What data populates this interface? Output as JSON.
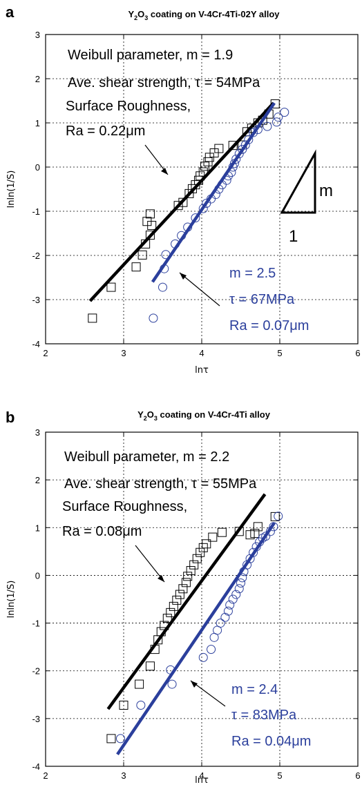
{
  "colors": {
    "fit_black": "#000000",
    "fit_blue": "#2b3f9c",
    "grid": "#000000"
  },
  "chart_data": [
    {
      "panel_letter": "a",
      "type": "scatter",
      "title": "Y2O3 coating on V-4Cr-4Ti-02Y alloy",
      "title_parts": {
        "a": "Y",
        "b": "2",
        "c": "O",
        "d": "3",
        "e": " coating on V-4Cr-4Ti-02Y alloy"
      },
      "xlabel": "lnτ",
      "ylabel": "lnln(1/S)",
      "xlim": [
        2,
        6
      ],
      "ylim": [
        -4,
        3
      ],
      "xticks": [
        "2",
        "3",
        "4",
        "5",
        "6"
      ],
      "yticks": [
        "-4",
        "-3",
        "-2",
        "-1",
        "0",
        "1",
        "2",
        "3"
      ],
      "grid": "dotted at interior ticks",
      "annotation_black": [
        "Weibull parameter, m = 1.9",
        "Ave. shear strength, τ = 54MPa",
        "Surface Roughness,",
        "Ra = 0.22μm"
      ],
      "annotation_blue": [
        "m = 2.5",
        "τ = 67MPa",
        "Ra = 0.07μm"
      ],
      "slope_triangle": {
        "m_label": "m",
        "run_label": "1"
      },
      "series": [
        {
          "marker": "square",
          "points": [
            [
              2.6,
              -3.42
            ],
            [
              2.84,
              -2.72
            ],
            [
              3.16,
              -2.26
            ],
            [
              3.24,
              -1.99
            ],
            [
              3.28,
              -1.74
            ],
            [
              3.34,
              -1.54
            ],
            [
              3.3,
              -1.23
            ],
            [
              3.34,
              -1.06
            ],
            [
              3.36,
              -1.32
            ],
            [
              3.7,
              -0.87
            ],
            [
              3.76,
              -0.8
            ],
            [
              3.84,
              -0.6
            ],
            [
              3.88,
              -0.49
            ],
            [
              3.92,
              -0.4
            ],
            [
              3.96,
              -0.3
            ],
            [
              3.98,
              -0.2
            ],
            [
              4.02,
              -0.11
            ],
            [
              4.04,
              0.02
            ],
            [
              4.08,
              0.12
            ],
            [
              4.1,
              0.22
            ],
            [
              4.16,
              0.32
            ],
            [
              4.22,
              0.42
            ],
            [
              4.4,
              0.49
            ],
            [
              4.52,
              0.5
            ],
            [
              4.58,
              0.8
            ],
            [
              4.64,
              0.88
            ],
            [
              4.72,
              1.0
            ],
            [
              4.78,
              1.06
            ],
            [
              4.86,
              1.2
            ],
            [
              4.94,
              1.43
            ]
          ],
          "fit": {
            "x": [
              2.57,
              4.92
            ],
            "y": [
              -3.03,
              1.45
            ]
          }
        },
        {
          "marker": "circle",
          "points": [
            [
              3.38,
              -3.42
            ],
            [
              3.5,
              -2.72
            ],
            [
              3.52,
              -2.3
            ],
            [
              3.54,
              -1.98
            ],
            [
              3.66,
              -1.74
            ],
            [
              3.74,
              -1.55
            ],
            [
              3.82,
              -1.36
            ],
            [
              3.92,
              -1.15
            ],
            [
              4.02,
              -0.94
            ],
            [
              4.06,
              -0.82
            ],
            [
              4.12,
              -0.72
            ],
            [
              4.18,
              -0.62
            ],
            [
              4.22,
              -0.5
            ],
            [
              4.26,
              -0.4
            ],
            [
              4.32,
              -0.3
            ],
            [
              4.34,
              -0.2
            ],
            [
              4.38,
              -0.12
            ],
            [
              4.4,
              0.0
            ],
            [
              4.42,
              0.08
            ],
            [
              4.44,
              0.18
            ],
            [
              4.48,
              0.3
            ],
            [
              4.52,
              0.4
            ],
            [
              4.56,
              0.5
            ],
            [
              4.6,
              0.62
            ],
            [
              4.66,
              0.78
            ],
            [
              4.72,
              0.85
            ],
            [
              4.84,
              0.92
            ],
            [
              4.96,
              1.02
            ],
            [
              4.98,
              1.13
            ],
            [
              5.06,
              1.24
            ]
          ],
          "fit": {
            "x": [
              3.37,
              4.93
            ],
            "y": [
              -2.6,
              1.45
            ]
          }
        }
      ]
    },
    {
      "panel_letter": "b",
      "type": "scatter",
      "title": "Y2O3 coating on V-4Cr-4Ti alloy",
      "title_parts": {
        "a": "Y",
        "b": "2",
        "c": "O",
        "d": "3",
        "e": " coating on V-4Cr-4Ti alloy"
      },
      "xlabel": "lnτ",
      "ylabel": "lnln(1/S)",
      "xlim": [
        2,
        6
      ],
      "ylim": [
        -4,
        3
      ],
      "xticks": [
        "2",
        "3",
        "4",
        "5",
        "6"
      ],
      "yticks": [
        "-4",
        "-3",
        "-2",
        "-1",
        "0",
        "1",
        "2",
        "3"
      ],
      "grid": "dotted at interior ticks",
      "annotation_black": [
        "Weibull parameter, m = 2.2",
        "Ave. shear strength, τ = 55MPa",
        "Surface Roughness,",
        "Ra = 0.08μm"
      ],
      "annotation_blue": [
        "m = 2.4",
        "τ = 83MPa",
        "Ra = 0.04μm"
      ],
      "series": [
        {
          "marker": "square",
          "points": [
            [
              2.84,
              -3.42
            ],
            [
              3.0,
              -2.72
            ],
            [
              3.2,
              -2.28
            ],
            [
              3.34,
              -1.9
            ],
            [
              3.4,
              -1.55
            ],
            [
              3.44,
              -1.35
            ],
            [
              3.48,
              -1.18
            ],
            [
              3.52,
              -1.05
            ],
            [
              3.56,
              -0.9
            ],
            [
              3.6,
              -0.78
            ],
            [
              3.64,
              -0.65
            ],
            [
              3.68,
              -0.52
            ],
            [
              3.72,
              -0.4
            ],
            [
              3.76,
              -0.28
            ],
            [
              3.8,
              -0.15
            ],
            [
              3.82,
              -0.02
            ],
            [
              3.86,
              0.1
            ],
            [
              3.9,
              0.22
            ],
            [
              3.94,
              0.35
            ],
            [
              3.98,
              0.48
            ],
            [
              4.02,
              0.58
            ],
            [
              4.06,
              0.66
            ],
            [
              4.14,
              0.8
            ],
            [
              4.26,
              0.9
            ],
            [
              4.48,
              0.92
            ],
            [
              4.62,
              0.85
            ],
            [
              4.68,
              0.88
            ],
            [
              4.72,
              1.02
            ],
            [
              4.94,
              1.23
            ]
          ],
          "fit": {
            "x": [
              2.8,
              4.81
            ],
            "y": [
              -2.8,
              1.7
            ]
          }
        },
        {
          "marker": "circle",
          "points": [
            [
              2.96,
              -3.42
            ],
            [
              3.22,
              -2.72
            ],
            [
              3.62,
              -2.28
            ],
            [
              3.6,
              -1.98
            ],
            [
              4.02,
              -1.72
            ],
            [
              4.12,
              -1.55
            ],
            [
              4.16,
              -1.3
            ],
            [
              4.2,
              -1.15
            ],
            [
              4.24,
              -1.0
            ],
            [
              4.3,
              -0.88
            ],
            [
              4.34,
              -0.75
            ],
            [
              4.36,
              -0.62
            ],
            [
              4.4,
              -0.5
            ],
            [
              4.44,
              -0.4
            ],
            [
              4.48,
              -0.28
            ],
            [
              4.5,
              -0.16
            ],
            [
              4.52,
              -0.05
            ],
            [
              4.54,
              0.08
            ],
            [
              4.58,
              0.22
            ],
            [
              4.62,
              0.35
            ],
            [
              4.66,
              0.48
            ],
            [
              4.7,
              0.6
            ],
            [
              4.74,
              0.7
            ],
            [
              4.78,
              0.78
            ],
            [
              4.82,
              0.82
            ],
            [
              4.88,
              0.92
            ],
            [
              4.92,
              1.02
            ],
            [
              4.98,
              1.24
            ]
          ],
          "fit": {
            "x": [
              2.92,
              4.93
            ],
            "y": [
              -3.75,
              1.1
            ]
          }
        }
      ]
    }
  ]
}
